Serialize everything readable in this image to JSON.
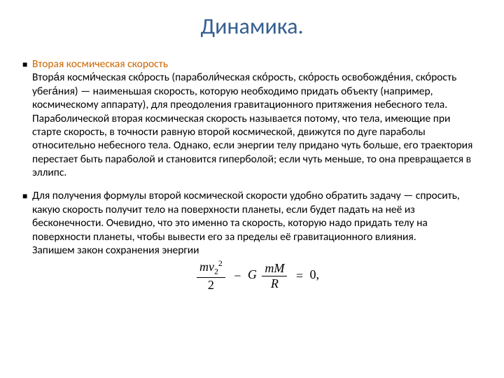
{
  "title": "Динамика.",
  "colors": {
    "title": "#365f91",
    "subheading": "#cc6600",
    "text": "#000000",
    "background": "#ffffff"
  },
  "typography": {
    "title_fontsize_pt": 24,
    "body_fontsize_pt": 12,
    "font_family": "Calibri"
  },
  "body": {
    "subheading": "Вторая космическая скорость",
    "p1": "Втора́я косми́ческая ско́рость (параболи́ческая ско́рость, ско́рость освобожде́ния, ско́рость убега́ния) — наименьшая скорость, которую необходимо придать объекту (например, космическому аппарату), для преодоления гравитационного притяжения небесного тела.",
    "p2": "Параболической вторая космическая скорость называется потому, что тела, имеющие при старте скорость, в точности равную второй космической, движутся по дуге параболы относительно небесного тела. Однако, если энергии телу придано чуть больше, его траектория перестает быть параболой и становится гиперболой; если чуть меньше, то она превращается в эллипс.",
    "p3": "Для получения формулы второй космической скорости удобно обратить задачу — спросить, какую скорость получит тело на поверхности планеты, если будет падать на неё из бесконечности. Очевидно, что это именно та скорость, которую надо придать телу на поверхности планеты, чтобы вывести его за пределы её гравитационного влияния.",
    "p4": "Запишем закон сохранения энергии"
  },
  "formula": {
    "num1_a": "m",
    "sub": "2",
    "sup": "2",
    "den1": "2",
    "op1": "−",
    "G": "G",
    "num2": "mM",
    "den2": "R",
    "op2": "=",
    "rhs": "0,"
  }
}
